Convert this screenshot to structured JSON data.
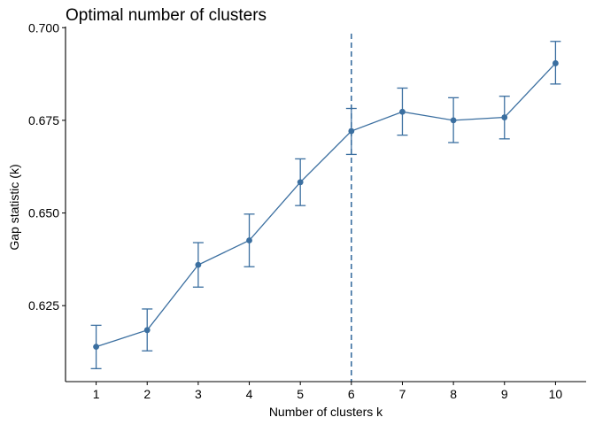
{
  "chart_data": {
    "type": "line",
    "title": "Optimal number of clusters",
    "xlabel": "Number of clusters k",
    "ylabel": "Gap statistic (k)",
    "x": [
      1,
      2,
      3,
      4,
      5,
      6,
      7,
      8,
      9,
      10
    ],
    "xticks": [
      "1",
      "2",
      "3",
      "4",
      "5",
      "6",
      "7",
      "8",
      "9",
      "10"
    ],
    "yticks": [
      0.625,
      0.65,
      0.675,
      0.7
    ],
    "ytick_labels": [
      "0.625",
      "0.650",
      "0.675",
      "0.700"
    ],
    "ylim": [
      0.6045,
      0.7003
    ],
    "series": [
      {
        "values": [
          0.6139,
          0.6184,
          0.636,
          0.6426,
          0.6583,
          0.6721,
          0.6773,
          0.675,
          0.6758,
          0.6904
        ],
        "error_low": [
          0.608,
          0.6128,
          0.63,
          0.6355,
          0.652,
          0.6658,
          0.671,
          0.669,
          0.67,
          0.6848
        ],
        "error_high": [
          0.6197,
          0.6241,
          0.642,
          0.6497,
          0.6646,
          0.6782,
          0.6837,
          0.6811,
          0.6815,
          0.6963
        ]
      }
    ],
    "vline_x": 6,
    "color": "#3b6fa0",
    "grid": false
  }
}
